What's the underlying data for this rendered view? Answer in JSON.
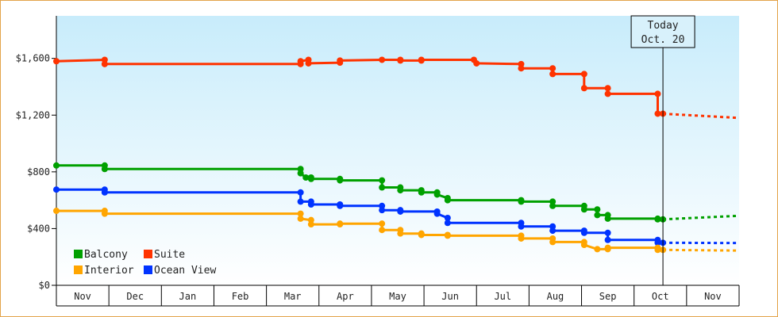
{
  "chart_data": {
    "type": "line",
    "title": "",
    "xlabel": "",
    "ylabel": "",
    "ylim": [
      0,
      1900
    ],
    "yticks": [
      0,
      400,
      800,
      1200,
      1600
    ],
    "ytick_labels": [
      "$0",
      "$400",
      "$800",
      "$1,200",
      "$1,600"
    ],
    "months": [
      "Nov",
      "Dec",
      "Jan",
      "Feb",
      "Mar",
      "Apr",
      "May",
      "Jun",
      "Jul",
      "Aug",
      "Sep",
      "Oct",
      "Nov"
    ],
    "today": {
      "label": "Today",
      "date": "Oct. 20",
      "x": 11.55
    },
    "legend": [
      "Balcony",
      "Suite",
      "Interior",
      "Ocean View"
    ],
    "legend_position": "bottom-left",
    "series": [
      {
        "name": "Suite",
        "color": "#ff3300",
        "points": [
          [
            0,
            1580
          ],
          [
            0.92,
            1590
          ],
          [
            0.92,
            1560
          ],
          [
            4.65,
            1560
          ],
          [
            4.65,
            1580
          ],
          [
            4.8,
            1590
          ],
          [
            4.8,
            1565
          ],
          [
            5.4,
            1570
          ],
          [
            5.4,
            1585
          ],
          [
            6.2,
            1590
          ],
          [
            6.55,
            1590
          ],
          [
            6.55,
            1585
          ],
          [
            6.95,
            1585
          ],
          [
            6.95,
            1590
          ],
          [
            7.95,
            1590
          ],
          [
            8.0,
            1565
          ],
          [
            8.85,
            1560
          ],
          [
            8.85,
            1530
          ],
          [
            9.45,
            1530
          ],
          [
            9.45,
            1490
          ],
          [
            10.05,
            1490
          ],
          [
            10.05,
            1390
          ],
          [
            10.5,
            1390
          ],
          [
            10.5,
            1350
          ],
          [
            11.45,
            1350
          ],
          [
            11.45,
            1210
          ],
          [
            11.55,
            1210
          ]
        ],
        "forecast": [
          [
            11.55,
            1210
          ],
          [
            13.0,
            1180
          ]
        ]
      },
      {
        "name": "Balcony",
        "color": "#00a000",
        "points": [
          [
            0,
            845
          ],
          [
            0.92,
            845
          ],
          [
            0.92,
            820
          ],
          [
            4.65,
            820
          ],
          [
            4.65,
            790
          ],
          [
            4.75,
            760
          ],
          [
            4.85,
            760
          ],
          [
            4.85,
            750
          ],
          [
            5.4,
            750
          ],
          [
            5.4,
            740
          ],
          [
            6.2,
            740
          ],
          [
            6.2,
            690
          ],
          [
            6.55,
            690
          ],
          [
            6.55,
            670
          ],
          [
            6.95,
            670
          ],
          [
            6.95,
            655
          ],
          [
            7.25,
            655
          ],
          [
            7.25,
            640
          ],
          [
            7.45,
            615
          ],
          [
            7.45,
            600
          ],
          [
            8.85,
            600
          ],
          [
            8.85,
            590
          ],
          [
            9.45,
            590
          ],
          [
            9.45,
            560
          ],
          [
            10.05,
            560
          ],
          [
            10.05,
            535
          ],
          [
            10.3,
            535
          ],
          [
            10.3,
            495
          ],
          [
            10.5,
            495
          ],
          [
            10.5,
            470
          ],
          [
            11.45,
            470
          ],
          [
            11.45,
            465
          ],
          [
            11.55,
            465
          ]
        ],
        "forecast": [
          [
            11.55,
            465
          ],
          [
            13.0,
            490
          ]
        ]
      },
      {
        "name": "Ocean View",
        "color": "#0033ff",
        "points": [
          [
            0,
            675
          ],
          [
            0.92,
            675
          ],
          [
            0.92,
            655
          ],
          [
            4.65,
            655
          ],
          [
            4.65,
            590
          ],
          [
            4.85,
            590
          ],
          [
            4.85,
            570
          ],
          [
            5.4,
            570
          ],
          [
            5.4,
            560
          ],
          [
            6.2,
            560
          ],
          [
            6.2,
            530
          ],
          [
            6.55,
            530
          ],
          [
            6.55,
            520
          ],
          [
            7.25,
            520
          ],
          [
            7.25,
            505
          ],
          [
            7.45,
            475
          ],
          [
            7.45,
            440
          ],
          [
            8.85,
            440
          ],
          [
            8.85,
            415
          ],
          [
            9.45,
            415
          ],
          [
            9.45,
            385
          ],
          [
            10.05,
            385
          ],
          [
            10.05,
            370
          ],
          [
            10.5,
            370
          ],
          [
            10.5,
            320
          ],
          [
            11.45,
            320
          ],
          [
            11.45,
            300
          ],
          [
            11.55,
            300
          ]
        ],
        "forecast": [
          [
            11.55,
            300
          ],
          [
            13.0,
            298
          ]
        ]
      },
      {
        "name": "Interior",
        "color": "#ffa500",
        "points": [
          [
            0,
            525
          ],
          [
            0.92,
            525
          ],
          [
            0.92,
            505
          ],
          [
            4.65,
            505
          ],
          [
            4.65,
            470
          ],
          [
            4.85,
            460
          ],
          [
            4.85,
            430
          ],
          [
            5.4,
            430
          ],
          [
            5.4,
            435
          ],
          [
            6.2,
            435
          ],
          [
            6.2,
            390
          ],
          [
            6.55,
            390
          ],
          [
            6.55,
            365
          ],
          [
            6.95,
            365
          ],
          [
            6.95,
            355
          ],
          [
            7.45,
            355
          ],
          [
            7.45,
            350
          ],
          [
            8.85,
            350
          ],
          [
            8.85,
            330
          ],
          [
            9.45,
            330
          ],
          [
            9.45,
            305
          ],
          [
            10.05,
            305
          ],
          [
            10.05,
            285
          ],
          [
            10.3,
            255
          ],
          [
            10.5,
            255
          ],
          [
            10.5,
            265
          ],
          [
            11.45,
            265
          ],
          [
            11.45,
            250
          ],
          [
            11.55,
            250
          ]
        ],
        "forecast": [
          [
            11.55,
            250
          ],
          [
            13.0,
            245
          ]
        ]
      }
    ]
  }
}
